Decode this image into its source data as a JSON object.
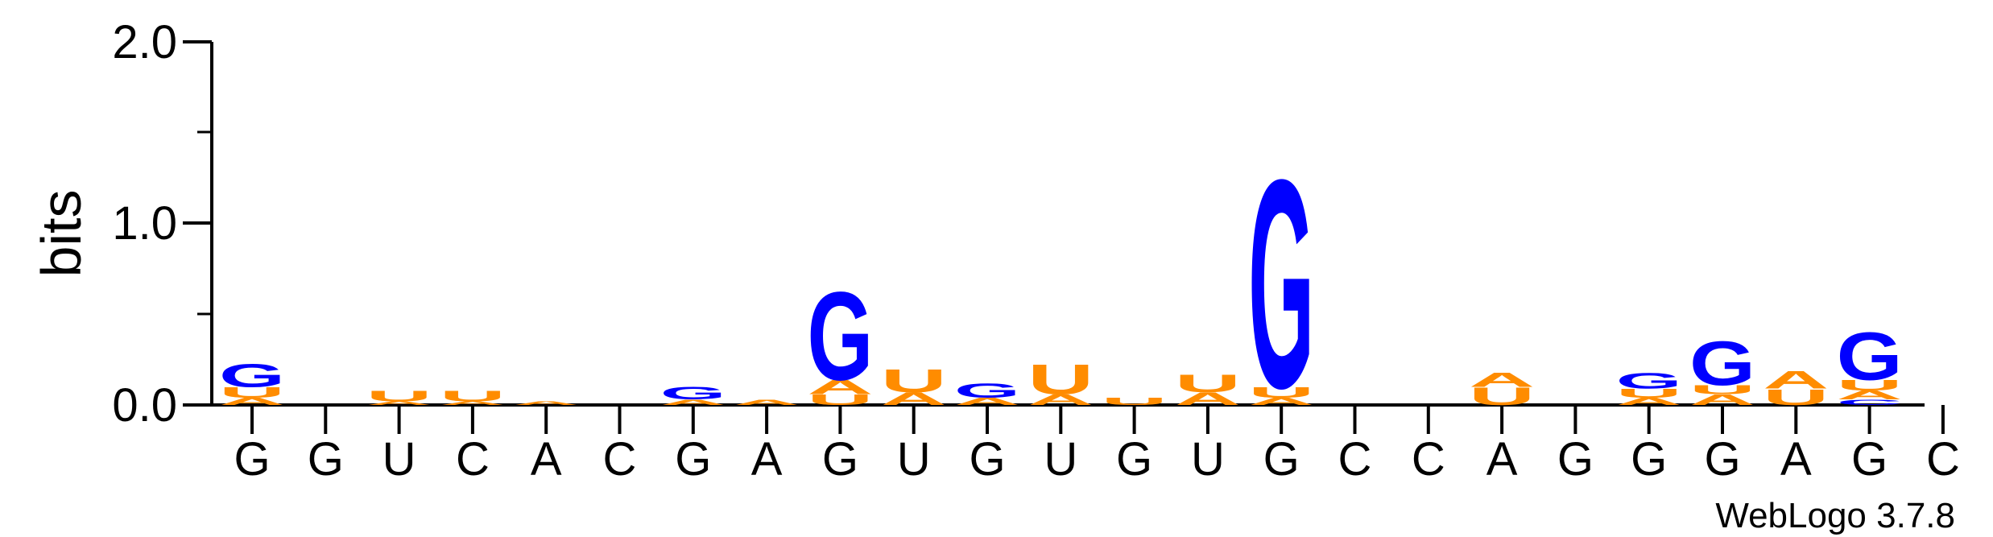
{
  "chart_data": {
    "type": "sequence-logo",
    "ylabel": "bits",
    "ylim": [
      0,
      2.0
    ],
    "yticks": [
      "0.0",
      "1.0",
      "2.0"
    ],
    "x_labels": [
      "G",
      "G",
      "U",
      "C",
      "A",
      "C",
      "G",
      "A",
      "G",
      "U",
      "G",
      "U",
      "G",
      "U",
      "G",
      "C",
      "C",
      "A",
      "G",
      "G",
      "G",
      "A",
      "G",
      "C"
    ],
    "colors": {
      "G": "#0000ff",
      "A": "#ff8c00",
      "U": "#ff8c00",
      "C": "#0000ff"
    },
    "columns": [
      [
        {
          "l": "A",
          "h": 0.04
        },
        {
          "l": "U",
          "h": 0.06
        },
        {
          "l": "G",
          "h": 0.13
        }
      ],
      [],
      [
        {
          "l": "A",
          "h": 0.02
        },
        {
          "l": "U",
          "h": 0.06
        }
      ],
      [
        {
          "l": "A",
          "h": 0.02
        },
        {
          "l": "U",
          "h": 0.06
        }
      ],
      [
        {
          "l": "A",
          "h": 0.02
        }
      ],
      [],
      [
        {
          "l": "A",
          "h": 0.03
        },
        {
          "l": "G",
          "h": 0.07
        }
      ],
      [
        {
          "l": "A",
          "h": 0.03
        }
      ],
      [
        {
          "l": "U",
          "h": 0.06
        },
        {
          "l": "A",
          "h": 0.08
        },
        {
          "l": "G",
          "h": 0.5
        }
      ],
      [
        {
          "l": "A",
          "h": 0.07
        },
        {
          "l": "U",
          "h": 0.13
        }
      ],
      [
        {
          "l": "A",
          "h": 0.04
        },
        {
          "l": "G",
          "h": 0.08
        }
      ],
      [
        {
          "l": "A",
          "h": 0.06
        },
        {
          "l": "U",
          "h": 0.17
        }
      ],
      [
        {
          "l": "U",
          "h": 0.04
        }
      ],
      [
        {
          "l": "A",
          "h": 0.07
        },
        {
          "l": "U",
          "h": 0.1
        }
      ],
      [
        {
          "l": "A",
          "h": 0.04
        },
        {
          "l": "U",
          "h": 0.06
        },
        {
          "l": "G",
          "h": 1.18
        }
      ],
      [],
      [],
      [
        {
          "l": "U",
          "h": 0.1
        },
        {
          "l": "A",
          "h": 0.08
        }
      ],
      [],
      [
        {
          "l": "A",
          "h": 0.04
        },
        {
          "l": "U",
          "h": 0.05
        },
        {
          "l": "G",
          "h": 0.09
        }
      ],
      [
        {
          "l": "A",
          "h": 0.06
        },
        {
          "l": "U",
          "h": 0.05
        },
        {
          "l": "G",
          "h": 0.25
        }
      ],
      [
        {
          "l": "U",
          "h": 0.09
        },
        {
          "l": "A",
          "h": 0.1
        }
      ],
      [
        {
          "l": "C",
          "h": 0.03
        },
        {
          "l": "A",
          "h": 0.05
        },
        {
          "l": "U",
          "h": 0.06
        },
        {
          "l": "G",
          "h": 0.27
        }
      ],
      []
    ]
  },
  "footer": {
    "credit": "WebLogo 3.7.8"
  }
}
